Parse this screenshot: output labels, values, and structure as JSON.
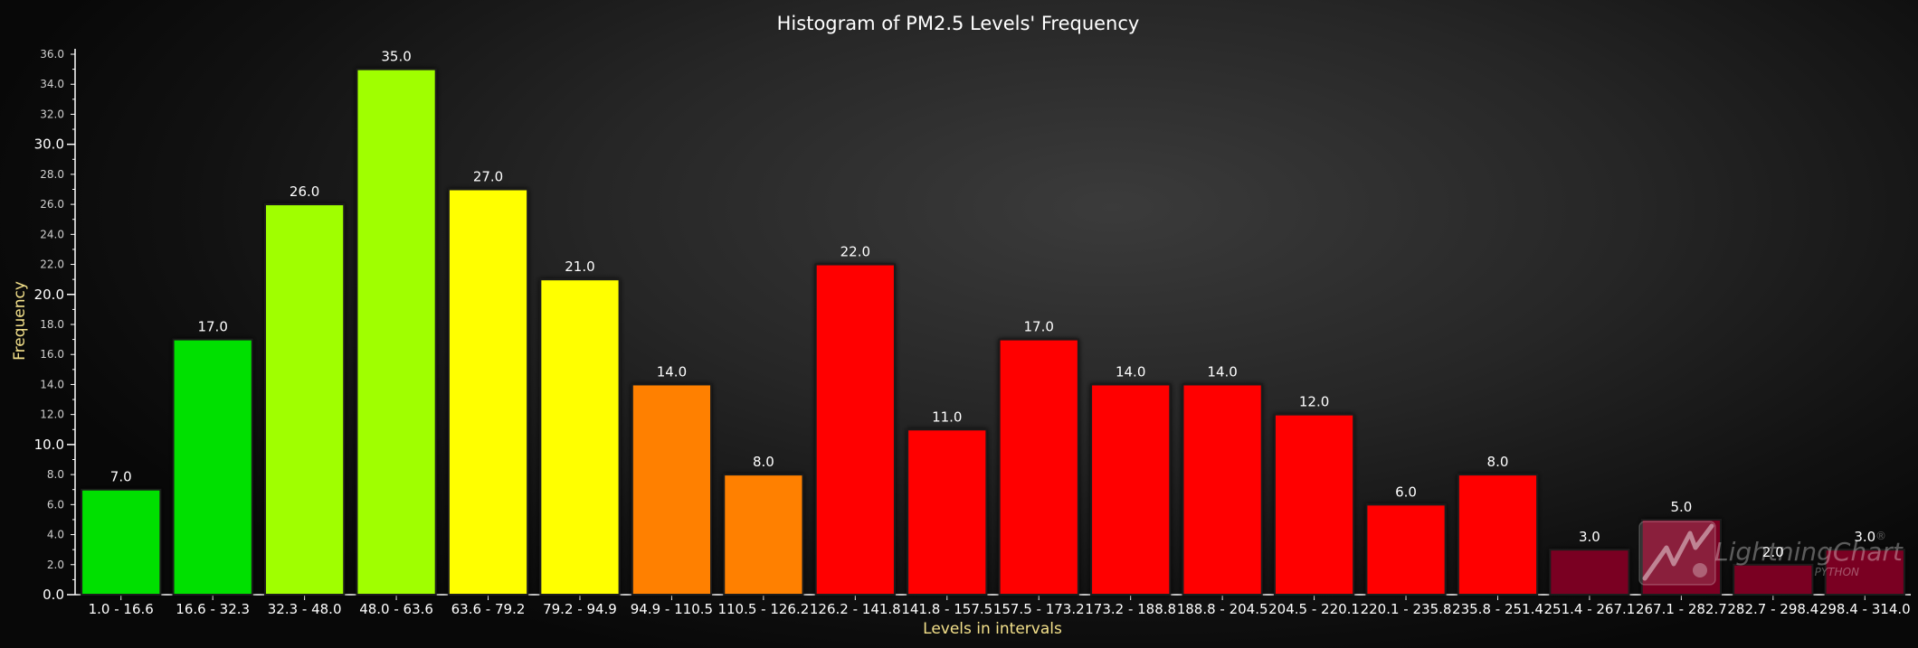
{
  "chart_data": {
    "type": "bar",
    "title": "Histogram of PM2.5 Levels' Frequency",
    "xlabel": "Levels in intervals",
    "ylabel": "Frequency",
    "ylim": [
      0,
      36
    ],
    "y_major_ticks": [
      "0.0",
      "10.0",
      "20.0",
      "30.0"
    ],
    "y_minor_ticks": [
      "2.0",
      "4.0",
      "6.0",
      "8.0",
      "12.0",
      "14.0",
      "16.0",
      "18.0",
      "22.0",
      "24.0",
      "26.0",
      "28.0",
      "32.0",
      "34.0",
      "36.0"
    ],
    "grid": false,
    "legend": "none",
    "categories": [
      "1.0 - 16.6",
      "16.6 - 32.3",
      "32.3 - 48.0",
      "48.0 - 63.6",
      "63.6 - 79.2",
      "79.2 - 94.9",
      "94.9 - 110.5",
      "110.5 - 126.2",
      "126.2 - 141.8",
      "141.8 - 157.5",
      "157.5 - 173.2",
      "173.2 - 188.8",
      "188.8 - 204.5",
      "204.5 - 220.1",
      "220.1 - 235.8",
      "235.8 - 251.4",
      "251.4 - 267.1",
      "267.1 - 282.7",
      "282.7 - 298.4",
      "298.4 - 314.0"
    ],
    "values": [
      7,
      17,
      26,
      35,
      27,
      21,
      14,
      8,
      22,
      11,
      17,
      14,
      14,
      12,
      6,
      8,
      3,
      5,
      2,
      3
    ],
    "data_labels": [
      "7.0",
      "17.0",
      "26.0",
      "35.0",
      "27.0",
      "21.0",
      "14.0",
      "8.0",
      "22.0",
      "11.0",
      "17.0",
      "14.0",
      "14.0",
      "12.0",
      "6.0",
      "8.0",
      "3.0",
      "5.0",
      "2.0",
      "3.0"
    ],
    "bar_colors": [
      "#00e000",
      "#00e000",
      "#a0ff00",
      "#a0ff00",
      "#ffff00",
      "#ffff00",
      "#ff8000",
      "#ff8000",
      "#ff0000",
      "#ff0000",
      "#ff0000",
      "#ff0000",
      "#ff0000",
      "#ff0000",
      "#ff0000",
      "#ff0000",
      "#7a0020",
      "#7a0020",
      "#7a0020",
      "#7a0020"
    ]
  },
  "watermark": {
    "brand": "LightningChart",
    "registered": "®",
    "sub": "PYTHON",
    "icon": "lightningchart-logo-icon"
  },
  "colors": {
    "axis": "#ffffff",
    "axis_title": "#f3e08a",
    "title": "#ffffff"
  }
}
